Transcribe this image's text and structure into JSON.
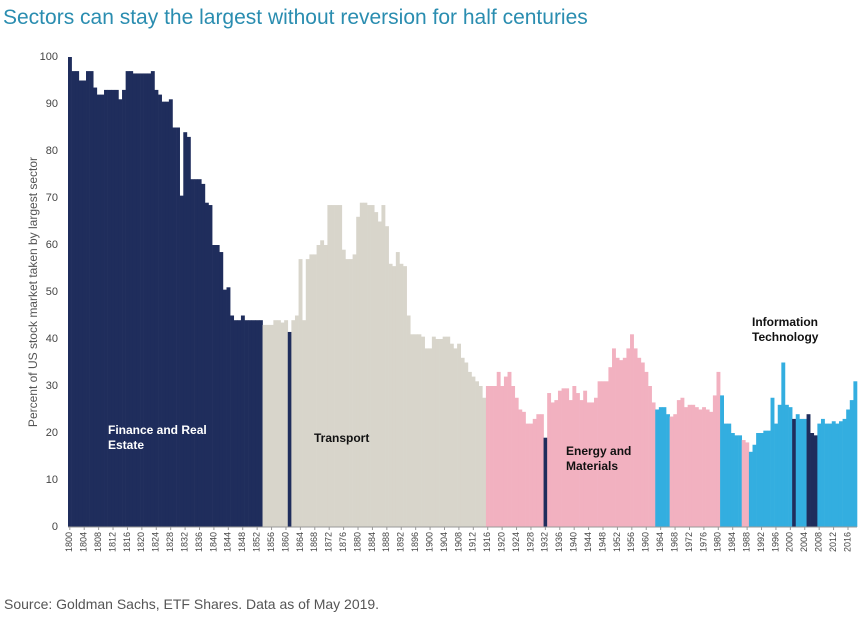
{
  "chart_data": {
    "type": "bar",
    "title": "Sectors can stay the largest without reversion for half centuries",
    "y_label": "Percent of US stock market taken by largest sector",
    "source": "Source: Goldman Sachs, ETF Shares. Data as of May 2019.",
    "annotations": [
      "Finance and Real Estate",
      "Transport",
      "Energy and Materials",
      "Information Technology"
    ],
    "x": [
      1800,
      1801,
      1802,
      1803,
      1804,
      1805,
      1806,
      1807,
      1808,
      1809,
      1810,
      1811,
      1812,
      1813,
      1814,
      1815,
      1816,
      1817,
      1818,
      1819,
      1820,
      1821,
      1822,
      1823,
      1824,
      1825,
      1826,
      1827,
      1828,
      1829,
      1830,
      1831,
      1832,
      1833,
      1834,
      1835,
      1836,
      1837,
      1838,
      1839,
      1840,
      1841,
      1842,
      1843,
      1844,
      1845,
      1846,
      1847,
      1848,
      1849,
      1850,
      1851,
      1852,
      1853,
      1854,
      1855,
      1856,
      1857,
      1858,
      1859,
      1860,
      1861,
      1862,
      1863,
      1864,
      1865,
      1866,
      1867,
      1868,
      1869,
      1870,
      1871,
      1872,
      1873,
      1874,
      1875,
      1876,
      1877,
      1878,
      1879,
      1880,
      1881,
      1882,
      1883,
      1884,
      1885,
      1886,
      1887,
      1888,
      1889,
      1890,
      1891,
      1892,
      1893,
      1894,
      1895,
      1896,
      1897,
      1898,
      1899,
      1900,
      1901,
      1902,
      1903,
      1904,
      1905,
      1906,
      1907,
      1908,
      1909,
      1910,
      1911,
      1912,
      1913,
      1914,
      1915,
      1916,
      1917,
      1918,
      1919,
      1920,
      1921,
      1922,
      1923,
      1924,
      1925,
      1926,
      1927,
      1928,
      1929,
      1930,
      1931,
      1932,
      1933,
      1934,
      1935,
      1936,
      1937,
      1938,
      1939,
      1940,
      1941,
      1942,
      1943,
      1944,
      1945,
      1946,
      1947,
      1948,
      1949,
      1950,
      1951,
      1952,
      1953,
      1954,
      1955,
      1956,
      1957,
      1958,
      1959,
      1960,
      1961,
      1962,
      1963,
      1964,
      1965,
      1966,
      1967,
      1968,
      1969,
      1970,
      1971,
      1972,
      1973,
      1974,
      1975,
      1976,
      1977,
      1978,
      1979,
      1980,
      1981,
      1982,
      1983,
      1984,
      1985,
      1986,
      1987,
      1988,
      1989,
      1990,
      1991,
      1992,
      1993,
      1994,
      1995,
      1996,
      1997,
      1998,
      1999,
      2000,
      2001,
      2002,
      2003,
      2004,
      2005,
      2006,
      2007,
      2008,
      2009,
      2010,
      2011,
      2012,
      2013,
      2014,
      2015,
      2016,
      2017,
      2018
    ],
    "values": [
      100,
      97,
      97,
      95,
      95,
      97,
      97,
      93.5,
      92,
      92,
      93,
      93,
      93,
      93,
      91,
      93,
      97,
      97,
      96.5,
      96.5,
      96.5,
      96.5,
      96.5,
      97,
      93,
      92,
      90.5,
      90.5,
      91,
      85,
      85,
      70.5,
      84,
      83,
      74,
      74,
      74,
      73,
      69,
      68.5,
      60,
      60,
      58.5,
      50.5,
      51,
      45,
      44,
      44,
      45,
      44,
      44,
      44,
      44,
      44,
      43,
      43,
      43,
      44,
      44,
      43.5,
      44,
      41.5,
      44,
      45,
      57,
      44,
      57,
      58,
      58,
      60,
      61,
      60,
      68.5,
      68.5,
      68.5,
      68.5,
      59,
      57,
      57,
      58,
      66,
      69,
      69,
      68.5,
      68.5,
      67,
      65,
      68.5,
      64,
      56,
      55.5,
      58.5,
      56,
      55.5,
      45,
      41,
      41,
      41,
      40.5,
      38,
      38,
      40.5,
      40,
      40,
      40.5,
      40.5,
      39,
      38,
      39,
      36,
      35,
      33,
      32,
      31,
      30,
      27.5,
      30,
      30,
      30,
      33,
      30,
      32,
      33,
      30,
      27.5,
      25,
      24.5,
      22,
      22,
      23,
      24,
      24,
      19,
      28.5,
      26.5,
      27,
      29,
      29.5,
      29.5,
      27,
      30,
      28.5,
      27,
      29,
      26.5,
      26.5,
      27.5,
      31,
      31,
      31,
      34,
      38,
      36,
      35.5,
      36,
      38,
      41,
      38,
      36,
      35,
      33,
      30,
      26.5,
      25,
      25.5,
      25.5,
      24,
      23.5,
      24,
      27,
      27.5,
      25.5,
      26,
      26,
      25.5,
      25,
      25.5,
      25,
      24.5,
      28,
      33,
      28,
      22,
      22,
      20,
      19.5,
      19.5,
      18.5,
      18,
      16,
      17.5,
      20,
      20,
      20.5,
      20.5,
      27.5,
      22,
      26,
      35,
      26,
      25.5,
      23,
      24,
      23,
      23,
      24,
      20,
      19.5,
      22,
      23,
      22,
      22,
      22.5,
      22,
      22.5,
      23,
      25,
      27,
      31
    ],
    "colors": [
      "#1f2d5c",
      "#1f2d5c",
      "#1f2d5c",
      "#1f2d5c",
      "#1f2d5c",
      "#1f2d5c",
      "#1f2d5c",
      "#1f2d5c",
      "#1f2d5c",
      "#1f2d5c",
      "#1f2d5c",
      "#1f2d5c",
      "#1f2d5c",
      "#1f2d5c",
      "#1f2d5c",
      "#1f2d5c",
      "#1f2d5c",
      "#1f2d5c",
      "#1f2d5c",
      "#1f2d5c",
      "#1f2d5c",
      "#1f2d5c",
      "#1f2d5c",
      "#1f2d5c",
      "#1f2d5c",
      "#1f2d5c",
      "#1f2d5c",
      "#1f2d5c",
      "#1f2d5c",
      "#1f2d5c",
      "#1f2d5c",
      "#1f2d5c",
      "#1f2d5c",
      "#1f2d5c",
      "#1f2d5c",
      "#1f2d5c",
      "#1f2d5c",
      "#1f2d5c",
      "#1f2d5c",
      "#1f2d5c",
      "#1f2d5c",
      "#1f2d5c",
      "#1f2d5c",
      "#1f2d5c",
      "#1f2d5c",
      "#1f2d5c",
      "#1f2d5c",
      "#1f2d5c",
      "#1f2d5c",
      "#1f2d5c",
      "#1f2d5c",
      "#1f2d5c",
      "#1f2d5c",
      "#1f2d5c",
      "#d8d5cb",
      "#d8d5cb",
      "#d8d5cb",
      "#d8d5cb",
      "#d8d5cb",
      "#d8d5cb",
      "#d8d5cb",
      "#1f2d5c",
      "#d8d5cb",
      "#d8d5cb",
      "#d8d5cb",
      "#d8d5cb",
      "#d8d5cb",
      "#d8d5cb",
      "#d8d5cb",
      "#d8d5cb",
      "#d8d5cb",
      "#d8d5cb",
      "#d8d5cb",
      "#d8d5cb",
      "#d8d5cb",
      "#d8d5cb",
      "#d8d5cb",
      "#d8d5cb",
      "#d8d5cb",
      "#d8d5cb",
      "#d8d5cb",
      "#d8d5cb",
      "#d8d5cb",
      "#d8d5cb",
      "#d8d5cb",
      "#d8d5cb",
      "#d8d5cb",
      "#d8d5cb",
      "#d8d5cb",
      "#d8d5cb",
      "#d8d5cb",
      "#d8d5cb",
      "#d8d5cb",
      "#d8d5cb",
      "#d8d5cb",
      "#d8d5cb",
      "#d8d5cb",
      "#d8d5cb",
      "#d8d5cb",
      "#d8d5cb",
      "#d8d5cb",
      "#d8d5cb",
      "#d8d5cb",
      "#d8d5cb",
      "#d8d5cb",
      "#d8d5cb",
      "#d8d5cb",
      "#d8d5cb",
      "#d8d5cb",
      "#d8d5cb",
      "#d8d5cb",
      "#d8d5cb",
      "#d8d5cb",
      "#d8d5cb",
      "#d8d5cb",
      "#d8d5cb",
      "#f2b1c0",
      "#f2b1c0",
      "#f2b1c0",
      "#f2b1c0",
      "#f2b1c0",
      "#f2b1c0",
      "#f2b1c0",
      "#f2b1c0",
      "#f2b1c0",
      "#f2b1c0",
      "#f2b1c0",
      "#f2b1c0",
      "#f2b1c0",
      "#f2b1c0",
      "#f2b1c0",
      "#f2b1c0",
      "#1f2d5c",
      "#f2b1c0",
      "#f2b1c0",
      "#f2b1c0",
      "#f2b1c0",
      "#f2b1c0",
      "#f2b1c0",
      "#f2b1c0",
      "#f2b1c0",
      "#f2b1c0",
      "#f2b1c0",
      "#f2b1c0",
      "#f2b1c0",
      "#f2b1c0",
      "#f2b1c0",
      "#f2b1c0",
      "#f2b1c0",
      "#f2b1c0",
      "#f2b1c0",
      "#f2b1c0",
      "#f2b1c0",
      "#f2b1c0",
      "#f2b1c0",
      "#f2b1c0",
      "#f2b1c0",
      "#f2b1c0",
      "#f2b1c0",
      "#f2b1c0",
      "#f2b1c0",
      "#f2b1c0",
      "#f2b1c0",
      "#33aee0",
      "#33aee0",
      "#33aee0",
      "#33aee0",
      "#f2b1c0",
      "#f2b1c0",
      "#f2b1c0",
      "#f2b1c0",
      "#f2b1c0",
      "#f2b1c0",
      "#f2b1c0",
      "#f2b1c0",
      "#f2b1c0",
      "#f2b1c0",
      "#f2b1c0",
      "#f2b1c0",
      "#f2b1c0",
      "#f2b1c0",
      "#33aee0",
      "#33aee0",
      "#33aee0",
      "#33aee0",
      "#33aee0",
      "#33aee0",
      "#f2b1c0",
      "#f2b1c0",
      "#33aee0",
      "#33aee0",
      "#33aee0",
      "#33aee0",
      "#33aee0",
      "#33aee0",
      "#33aee0",
      "#33aee0",
      "#33aee0",
      "#33aee0",
      "#33aee0",
      "#33aee0",
      "#1f2d5c",
      "#33aee0",
      "#33aee0",
      "#33aee0",
      "#1f2d5c",
      "#1f2d5c",
      "#1f2d5c",
      "#33aee0",
      "#33aee0",
      "#33aee0",
      "#33aee0",
      "#33aee0",
      "#33aee0",
      "#33aee0",
      "#33aee0",
      "#33aee0",
      "#33aee0",
      "#33aee0"
    ],
    "xlim": [
      1799.5,
      2018.5
    ],
    "xticks": [
      1800,
      1804,
      1808,
      1812,
      1816,
      1820,
      1824,
      1828,
      1832,
      1836,
      1840,
      1844,
      1848,
      1852,
      1856,
      1860,
      1864,
      1868,
      1872,
      1876,
      1880,
      1884,
      1888,
      1892,
      1896,
      1900,
      1904,
      1908,
      1912,
      1916,
      1920,
      1924,
      1928,
      1932,
      1936,
      1940,
      1944,
      1948,
      1952,
      1956,
      1960,
      1964,
      1968,
      1972,
      1976,
      1980,
      1984,
      1988,
      1992,
      1996,
      2000,
      2004,
      2008,
      2012,
      2016
    ],
    "ylim": [
      0,
      100
    ],
    "yticks": [
      0,
      10,
      20,
      30,
      40,
      50,
      60,
      70,
      80,
      90,
      100
    ],
    "grid": false
  }
}
